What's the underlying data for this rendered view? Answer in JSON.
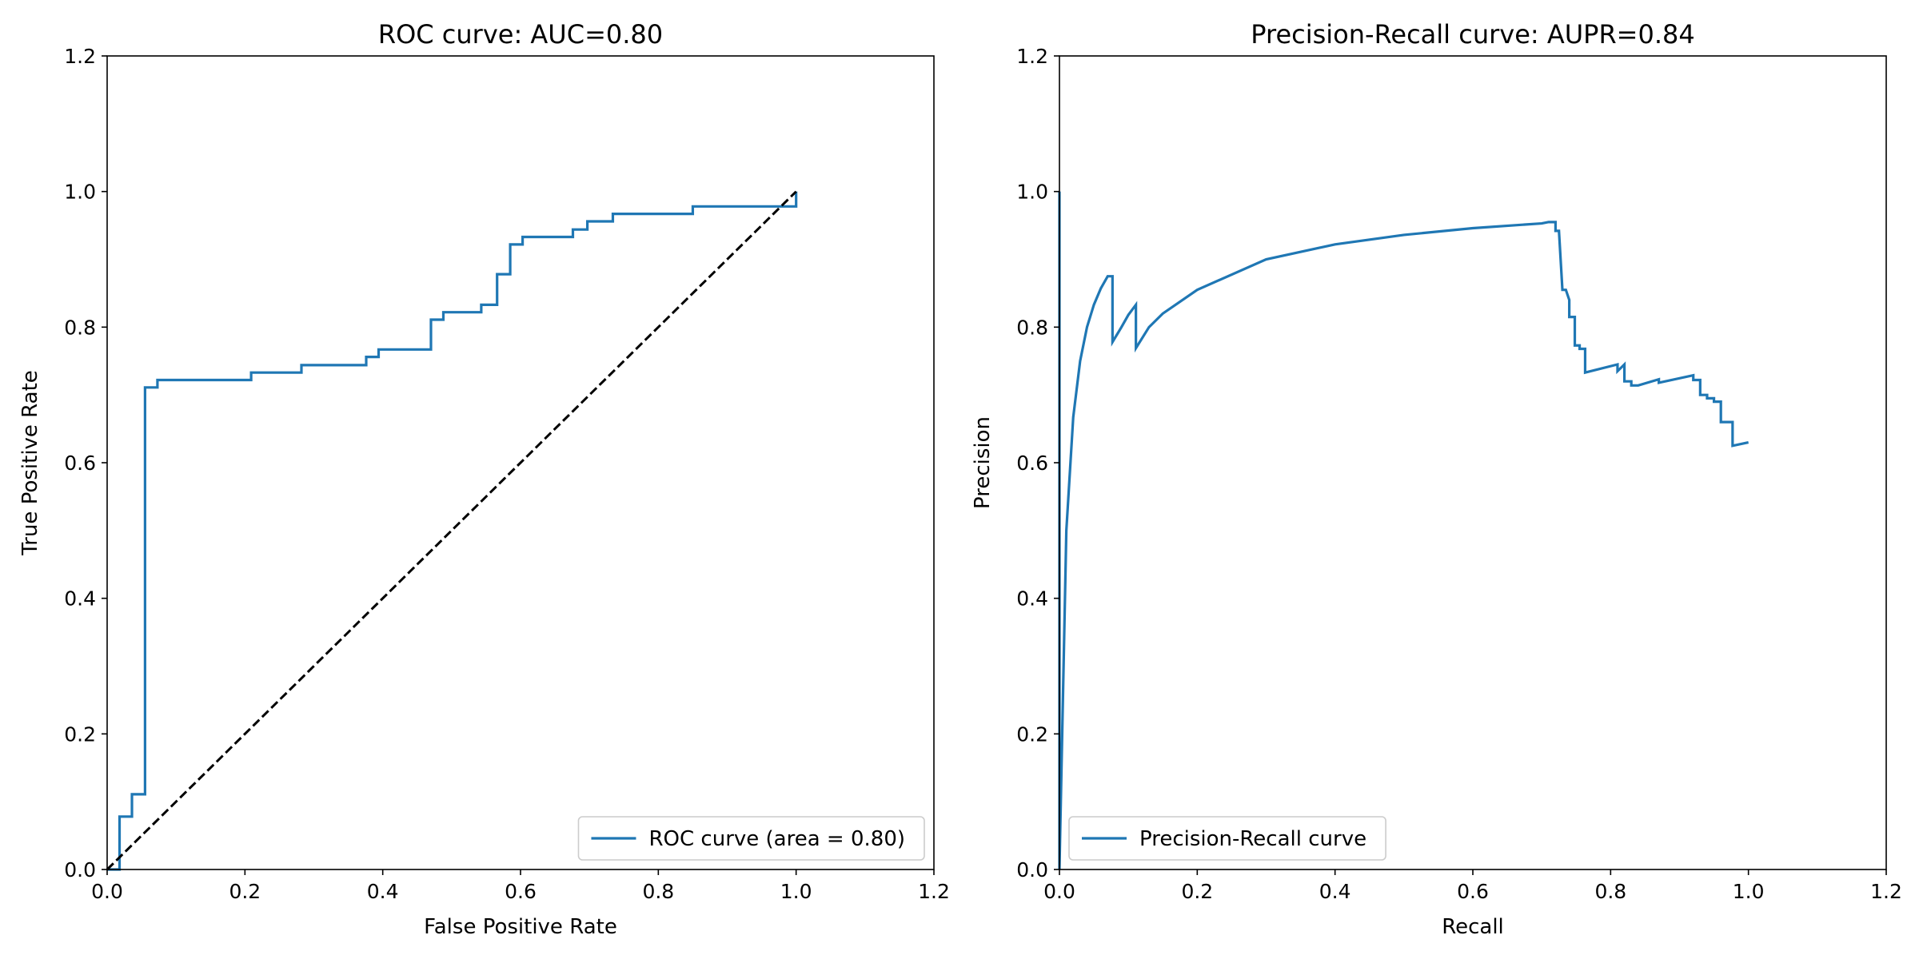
{
  "chart_data": [
    {
      "type": "line",
      "title": "ROC curve: AUC=0.80",
      "xlabel": "False Positive Rate",
      "ylabel": "True Positive Rate",
      "xlim": [
        0,
        1.2
      ],
      "ylim": [
        0,
        1.2
      ],
      "xticks": [
        "0.0",
        "0.2",
        "0.4",
        "0.6",
        "0.8",
        "1.0",
        "1.2"
      ],
      "yticks": [
        "0.0",
        "0.2",
        "0.4",
        "0.6",
        "0.8",
        "1.0",
        "1.2"
      ],
      "grid": false,
      "legend_position": "lower-right",
      "series": [
        {
          "name": "ROC curve (area = 0.80)",
          "color": "#1f77b4",
          "style": "step",
          "x": [
            0.0,
            0.018,
            0.018,
            0.036,
            0.036,
            0.055,
            0.055,
            0.073,
            0.073,
            0.209,
            0.209,
            0.282,
            0.282,
            0.376,
            0.376,
            0.394,
            0.394,
            0.47,
            0.47,
            0.488,
            0.488,
            0.543,
            0.543,
            0.566,
            0.566,
            0.585,
            0.585,
            0.603,
            0.603,
            0.676,
            0.676,
            0.697,
            0.697,
            0.734,
            0.734,
            0.85,
            0.85,
            1.0,
            1.0
          ],
          "y": [
            0.0,
            0.0,
            0.078,
            0.078,
            0.111,
            0.111,
            0.711,
            0.711,
            0.722,
            0.722,
            0.733,
            0.733,
            0.744,
            0.744,
            0.756,
            0.756,
            0.767,
            0.767,
            0.811,
            0.811,
            0.822,
            0.822,
            0.833,
            0.833,
            0.878,
            0.878,
            0.922,
            0.922,
            0.933,
            0.933,
            0.944,
            0.944,
            0.956,
            0.956,
            0.967,
            0.967,
            0.978,
            0.978,
            1.0
          ]
        },
        {
          "name": "",
          "color": "#000000",
          "style": "dashed",
          "x": [
            0,
            1
          ],
          "y": [
            0,
            1
          ]
        }
      ]
    },
    {
      "type": "line",
      "title": "Precision-Recall curve: AUPR=0.84",
      "xlabel": "Recall",
      "ylabel": "Precision",
      "xlim": [
        0,
        1.2
      ],
      "ylim": [
        0,
        1.2
      ],
      "xticks": [
        "0.0",
        "0.2",
        "0.4",
        "0.6",
        "0.8",
        "1.0",
        "1.2"
      ],
      "yticks": [
        "0.0",
        "0.2",
        "0.4",
        "0.6",
        "0.8",
        "1.0",
        "1.2"
      ],
      "grid": false,
      "legend_position": "lower-left",
      "series": [
        {
          "name": "Precision-Recall curve",
          "color": "#1f77b4",
          "style": "line",
          "x": [
            0.0,
            0.0,
            0.005,
            0.01,
            0.02,
            0.03,
            0.04,
            0.05,
            0.06,
            0.07,
            0.077,
            0.077,
            0.09,
            0.1,
            0.111,
            0.111,
            0.13,
            0.15,
            0.2,
            0.3,
            0.4,
            0.5,
            0.6,
            0.7,
            0.71,
            0.72,
            0.72,
            0.725,
            0.73,
            0.735,
            0.74,
            0.74,
            0.748,
            0.748,
            0.755,
            0.755,
            0.763,
            0.763,
            0.81,
            0.81,
            0.82,
            0.82,
            0.83,
            0.83,
            0.84,
            0.87,
            0.87,
            0.92,
            0.92,
            0.93,
            0.93,
            0.94,
            0.94,
            0.95,
            0.95,
            0.96,
            0.96,
            0.967,
            0.967,
            0.977,
            0.977,
            1.0
          ],
          "y": [
            1.0,
            0.0,
            0.25,
            0.5,
            0.667,
            0.75,
            0.8,
            0.833,
            0.857,
            0.875,
            0.875,
            0.778,
            0.8,
            0.818,
            0.833,
            0.769,
            0.8,
            0.82,
            0.855,
            0.9,
            0.922,
            0.936,
            0.946,
            0.953,
            0.955,
            0.955,
            0.942,
            0.942,
            0.855,
            0.855,
            0.84,
            0.815,
            0.815,
            0.773,
            0.773,
            0.768,
            0.768,
            0.733,
            0.745,
            0.735,
            0.745,
            0.72,
            0.72,
            0.714,
            0.714,
            0.723,
            0.718,
            0.729,
            0.722,
            0.722,
            0.7,
            0.7,
            0.695,
            0.695,
            0.69,
            0.69,
            0.66,
            0.66,
            0.66,
            0.66,
            0.625,
            0.63
          ]
        }
      ]
    }
  ]
}
